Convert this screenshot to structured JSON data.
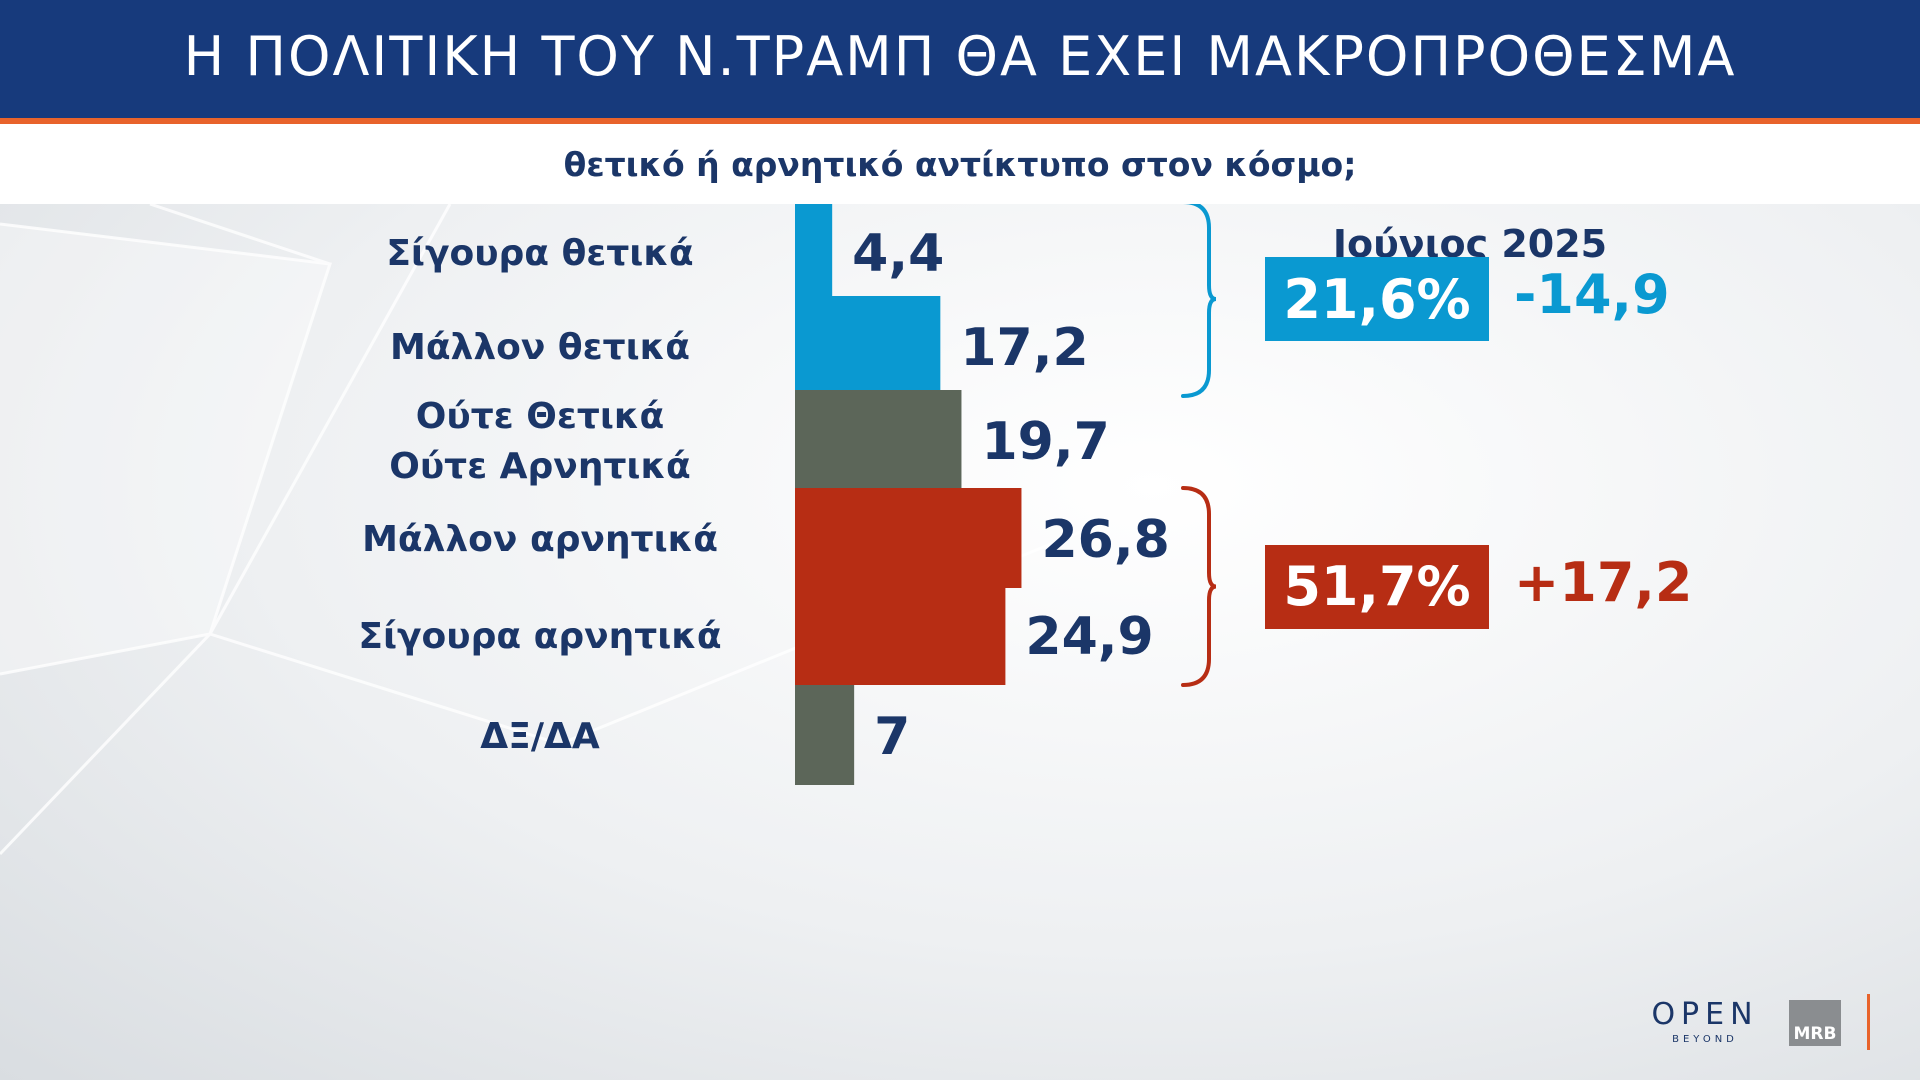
{
  "header": {
    "title": "Η ΠΟΛΙΤΙΚΗ ΤΟΥ Ν.ΤΡΑΜΠ ΘΑ ΕΧΕΙ ΜΑΚΡΟΠΡΟΘΕΣΜΑ",
    "subtitle": "θετικό ή αρνητικό αντίκτυπο στον κόσμο;"
  },
  "period": "Ιούνιος 2025",
  "colors": {
    "header_bg": "#173a7c",
    "accent": "#e8632b",
    "positive": "#0a99d1",
    "neutral": "#5c6659",
    "negative": "#b72d14",
    "text": "#1b3668"
  },
  "chart_data": {
    "type": "bar",
    "orientation": "horizontal",
    "categories": [
      [
        "Σίγουρα θετικά"
      ],
      [
        "Μάλλον θετικά"
      ],
      [
        "Ούτε Θετικά",
        "Ούτε Αρνητικά"
      ],
      [
        "Μάλλον αρνητικά"
      ],
      [
        "Σίγουρα αρνητικά"
      ],
      [
        "ΔΞ/ΔΑ"
      ]
    ],
    "values": [
      4.4,
      17.2,
      19.7,
      26.8,
      24.9,
      7
    ],
    "value_labels": [
      "4,4",
      "17,2",
      "19,7",
      "26,8",
      "24,9",
      "7"
    ],
    "bar_colors": [
      "#0a99d1",
      "#0a99d1",
      "#5c6659",
      "#b72d14",
      "#b72d14",
      "#5c6659"
    ],
    "groups": [
      {
        "members": [
          0,
          1
        ],
        "total": "21,6%",
        "change": "-14,9",
        "color": "#0a99d1"
      },
      {
        "members": [
          3,
          4
        ],
        "total": "51,7%",
        "change": "+17,2",
        "color": "#b72d14"
      }
    ]
  },
  "logos": {
    "open_main": "OPEN",
    "open_sub": "BEYOND",
    "mrb": "MRB"
  }
}
